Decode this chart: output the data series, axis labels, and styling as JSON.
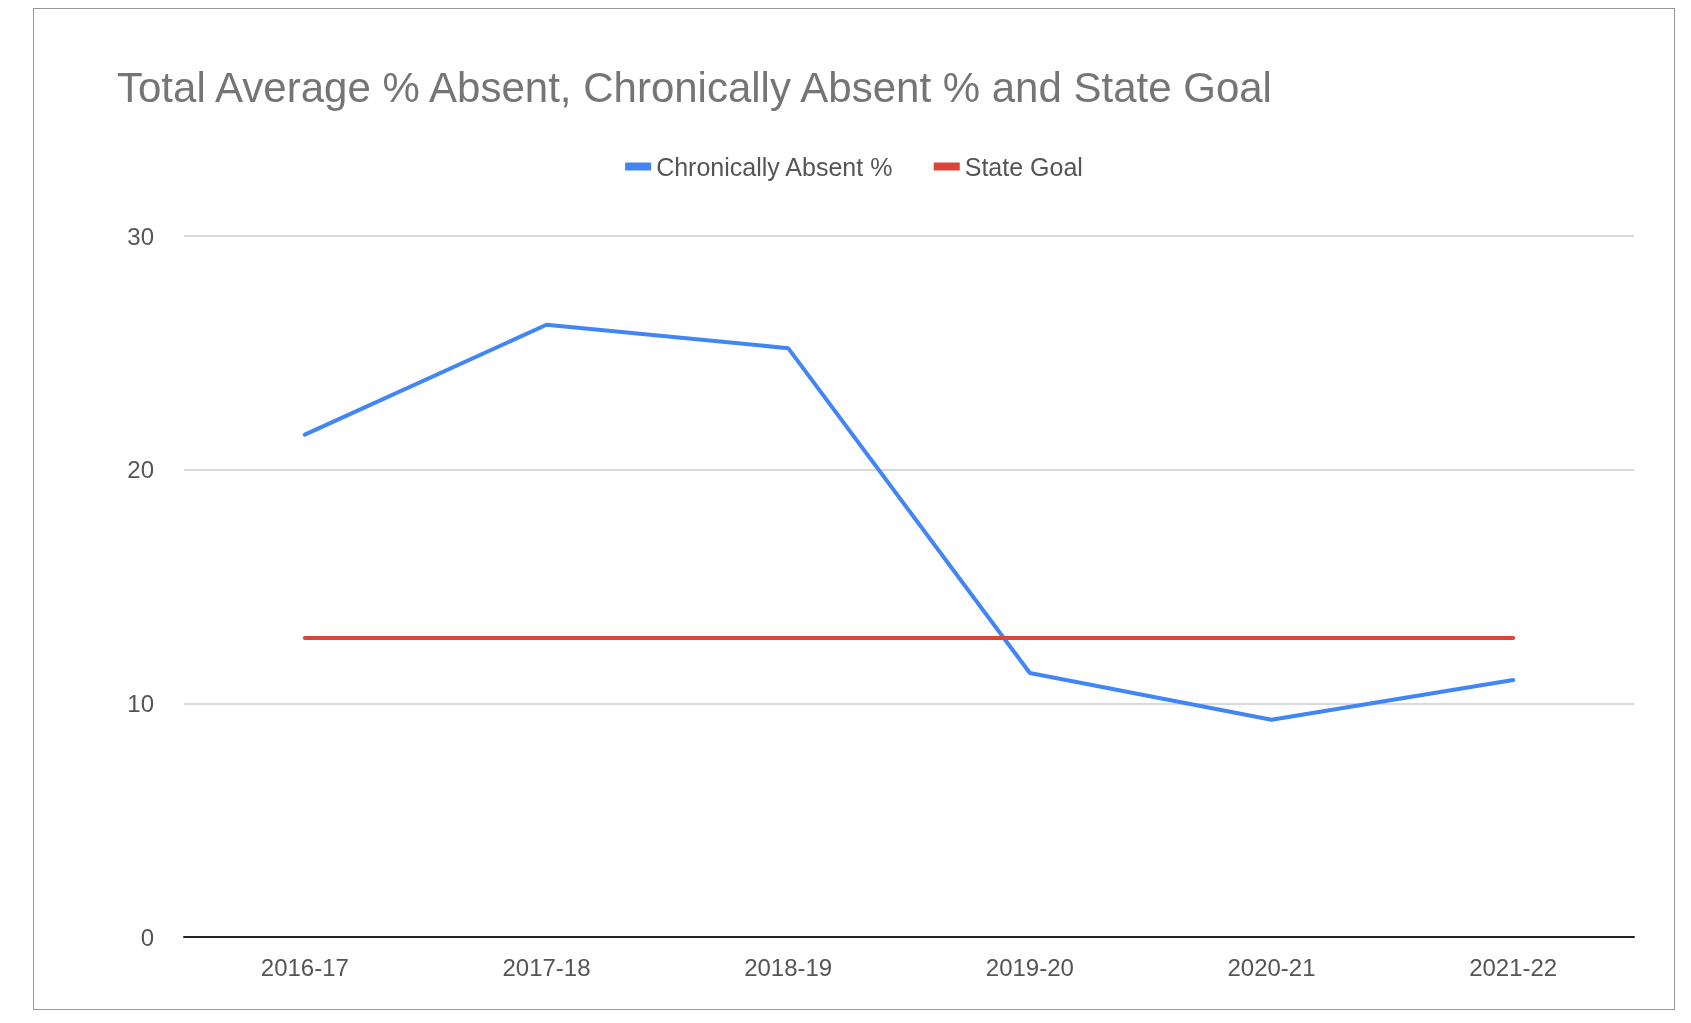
{
  "chart_data": {
    "type": "line",
    "title": "Total Average % Absent, Chronically Absent % and State Goal",
    "categories": [
      "2016-17",
      "2017-18",
      "2018-19",
      "2019-20",
      "2020-21",
      "2021-22"
    ],
    "series": [
      {
        "name": "Chronically Absent %",
        "color": "#4285f4",
        "values": [
          21.5,
          26.2,
          25.2,
          11.3,
          9.3,
          11.0
        ]
      },
      {
        "name": "State Goal",
        "color": "#db4437",
        "values": [
          12.8,
          12.8,
          12.8,
          12.8,
          12.8,
          12.8
        ]
      }
    ],
    "ylim": [
      0,
      30
    ],
    "yticks": [
      0,
      10,
      20,
      30
    ],
    "grid": "y",
    "legend": "top",
    "marker": "none",
    "line_style": "solid"
  }
}
